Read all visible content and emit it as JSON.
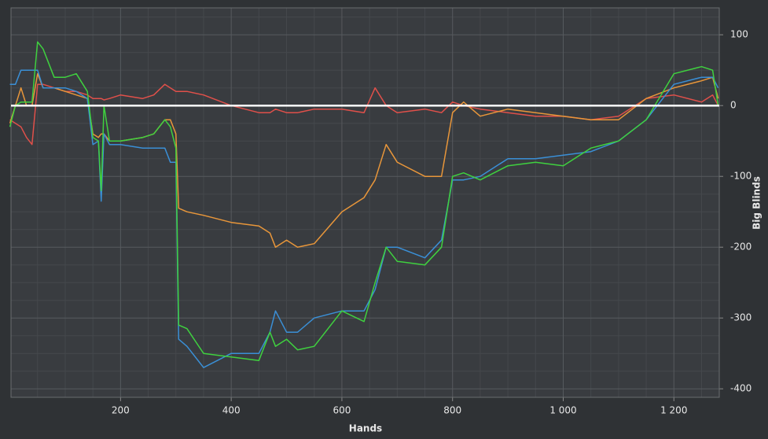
{
  "chart_data": {
    "type": "line",
    "x_label": "Hands",
    "y_label": "Big Blinds",
    "x": [
      0,
      10,
      20,
      30,
      40,
      50,
      60,
      80,
      100,
      120,
      140,
      150,
      160,
      165,
      170,
      180,
      200,
      240,
      260,
      280,
      290,
      300,
      305,
      320,
      350,
      400,
      450,
      470,
      480,
      500,
      520,
      550,
      600,
      640,
      660,
      680,
      700,
      750,
      780,
      800,
      820,
      850,
      900,
      950,
      1000,
      1050,
      1100,
      1150,
      1200,
      1250,
      1270,
      1280
    ],
    "series": [
      {
        "color": "#e0504a",
        "values": [
          -20,
          -25,
          -30,
          -45,
          -55,
          30,
          30,
          25,
          20,
          20,
          15,
          10,
          10,
          10,
          8,
          10,
          15,
          10,
          15,
          30,
          25,
          20,
          20,
          20,
          15,
          0,
          -10,
          -10,
          -5,
          -10,
          -10,
          -5,
          -5,
          -10,
          25,
          0,
          -10,
          -5,
          -10,
          5,
          0,
          -5,
          -10,
          -15,
          -15,
          -20,
          -15,
          10,
          15,
          5,
          15,
          0
        ]
      },
      {
        "color": "#e8963a",
        "values": [
          -25,
          0,
          25,
          0,
          0,
          45,
          25,
          25,
          20,
          15,
          10,
          -40,
          -45,
          -40,
          -40,
          -50,
          -50,
          -45,
          -40,
          -20,
          -20,
          -40,
          -145,
          -150,
          -155,
          -165,
          -170,
          -180,
          -200,
          -190,
          -200,
          -195,
          -150,
          -130,
          -105,
          -55,
          -80,
          -100,
          -100,
          -10,
          5,
          -15,
          -5,
          -10,
          -15,
          -20,
          -20,
          10,
          25,
          35,
          40,
          10
        ]
      },
      {
        "color": "#3a8fd6",
        "values": [
          30,
          30,
          50,
          50,
          50,
          50,
          25,
          25,
          25,
          20,
          10,
          -55,
          -50,
          -135,
          -40,
          -55,
          -55,
          -60,
          -60,
          -60,
          -80,
          -80,
          -330,
          -340,
          -370,
          -350,
          -350,
          -320,
          -290,
          -320,
          -320,
          -300,
          -290,
          -290,
          -260,
          -200,
          -200,
          -215,
          -190,
          -105,
          -105,
          -100,
          -75,
          -75,
          -70,
          -65,
          -50,
          -20,
          30,
          40,
          40,
          25
        ]
      },
      {
        "color": "#3fd13f",
        "values": [
          -30,
          0,
          5,
          5,
          5,
          90,
          80,
          40,
          40,
          45,
          20,
          -45,
          -50,
          -120,
          0,
          -50,
          -50,
          -45,
          -40,
          -20,
          -30,
          -60,
          -310,
          -315,
          -350,
          -355,
          -360,
          -320,
          -340,
          -330,
          -345,
          -340,
          -290,
          -305,
          -250,
          -200,
          -220,
          -225,
          -200,
          -100,
          -95,
          -105,
          -85,
          -80,
          -85,
          -60,
          -50,
          -20,
          45,
          55,
          50,
          0
        ]
      }
    ],
    "xlim": [
      2,
      1282
    ],
    "ylim": [
      -412,
      138
    ],
    "xticks": [
      200,
      400,
      600,
      800,
      {
        "value": 1000,
        "label": "1 000"
      },
      {
        "value": 1200,
        "label": "1 200"
      }
    ],
    "yticks": [
      -400,
      -300,
      -200,
      -100,
      0,
      100
    ],
    "xminorticks": [
      50,
      100,
      150,
      250,
      300,
      350,
      450,
      500,
      550,
      650,
      700,
      750,
      850,
      900,
      950,
      1050,
      1100,
      1150,
      1250
    ],
    "yminorticks": [
      -375,
      -350,
      -325,
      -275,
      -250,
      -225,
      -175,
      -150,
      -125,
      -75,
      -50,
      -25,
      25,
      50,
      75,
      125
    ],
    "grid": true,
    "zero_line_color": "#ffffff",
    "y_axis_side": "right"
  }
}
